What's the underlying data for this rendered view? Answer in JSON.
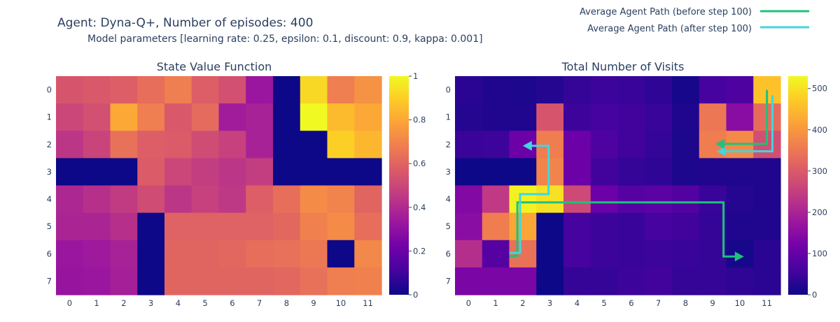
{
  "header": {
    "title": "Agent: Dyna-Q+, Number of episodes: 400",
    "subtitle": "Model parameters [learning rate: 0.25, epsilon: 0.1, discount: 0.9, kappa: 0.001]"
  },
  "legend": {
    "items": [
      {
        "label": "Average Agent Path (before step 100)",
        "color": "#1ec27a"
      },
      {
        "label": "Average Agent Path (after step 100)",
        "color": "#40d6e0"
      }
    ]
  },
  "colorscale": [
    "#0d0887",
    "#46039f",
    "#7201a8",
    "#9c179e",
    "#bd3786",
    "#d8576b",
    "#ed7953",
    "#fb9f3a",
    "#fdca26",
    "#f0f921"
  ],
  "chart_data": [
    {
      "type": "heatmap",
      "title": "State Value Function",
      "x_ticks": [
        "0",
        "1",
        "2",
        "3",
        "4",
        "5",
        "6",
        "7",
        "8",
        "9",
        "10",
        "11"
      ],
      "y_ticks": [
        "0",
        "1",
        "2",
        "3",
        "4",
        "5",
        "6",
        "7"
      ],
      "zmin": 0,
      "zmax": 1.0,
      "colorbar_ticks": [
        "0",
        "0.2",
        "0.4",
        "0.6",
        "0.8",
        "1"
      ],
      "colorbar_tick_values": [
        0,
        0.2,
        0.4,
        0.6,
        0.8,
        1.0
      ],
      "z": [
        [
          0.55,
          0.56,
          0.58,
          0.63,
          0.68,
          0.58,
          0.53,
          0.33,
          0.0,
          0.92,
          0.68,
          0.74
        ],
        [
          0.5,
          0.53,
          0.8,
          0.68,
          0.56,
          0.62,
          0.35,
          0.37,
          0.0,
          1.0,
          0.85,
          0.8
        ],
        [
          0.44,
          0.49,
          0.64,
          0.58,
          0.57,
          0.52,
          0.48,
          0.37,
          0.0,
          0.0,
          0.9,
          0.84
        ],
        [
          0.0,
          0.0,
          0.0,
          0.57,
          0.5,
          0.47,
          0.44,
          0.47,
          0.0,
          0.0,
          0.0,
          0.0
        ],
        [
          0.39,
          0.42,
          0.46,
          0.52,
          0.44,
          0.48,
          0.45,
          0.58,
          0.63,
          0.72,
          0.7,
          0.6
        ],
        [
          0.38,
          0.38,
          0.42,
          0.0,
          0.59,
          0.59,
          0.59,
          0.59,
          0.61,
          0.69,
          0.72,
          0.63
        ],
        [
          0.33,
          0.34,
          0.37,
          0.0,
          0.6,
          0.6,
          0.61,
          0.63,
          0.64,
          0.66,
          0.0,
          0.71
        ],
        [
          0.32,
          0.33,
          0.36,
          0.0,
          0.6,
          0.6,
          0.6,
          0.6,
          0.61,
          0.64,
          0.68,
          0.69
        ]
      ]
    },
    {
      "type": "heatmap",
      "title": "Total Number of Visits",
      "x_ticks": [
        "0",
        "1",
        "2",
        "3",
        "4",
        "5",
        "6",
        "7",
        "8",
        "9",
        "10",
        "11"
      ],
      "y_ticks": [
        "0",
        "1",
        "2",
        "3",
        "4",
        "5",
        "6",
        "7"
      ],
      "zmin": 0,
      "zmax": 530,
      "colorbar_ticks": [
        "0",
        "100",
        "200",
        "300",
        "400",
        "500"
      ],
      "colorbar_tick_values": [
        0,
        100,
        200,
        300,
        400,
        500
      ],
      "z": [
        [
          30,
          20,
          15,
          25,
          40,
          50,
          45,
          35,
          10,
          60,
          70,
          460
        ],
        [
          25,
          20,
          20,
          290,
          50,
          60,
          55,
          45,
          20,
          350,
          150,
          330
        ],
        [
          45,
          50,
          110,
          360,
          110,
          70,
          55,
          40,
          15,
          360,
          380,
          280
        ],
        [
          0,
          0,
          0,
          370,
          110,
          55,
          40,
          35,
          15,
          20,
          20,
          20
        ],
        [
          140,
          240,
          520,
          500,
          270,
          110,
          80,
          85,
          75,
          45,
          25,
          20
        ],
        [
          150,
          360,
          420,
          0,
          60,
          50,
          45,
          60,
          55,
          40,
          20,
          20
        ],
        [
          220,
          80,
          340,
          0,
          60,
          50,
          45,
          50,
          45,
          40,
          10,
          30
        ],
        [
          130,
          130,
          130,
          0,
          40,
          40,
          50,
          55,
          40,
          40,
          35,
          30
        ]
      ],
      "paths": [
        {
          "name": "Average Agent Path (before step 100)",
          "color": "#1ec27a",
          "points": [
            [
              1.5,
              6.08
            ],
            [
              1.8,
              6.08
            ],
            [
              1.8,
              4.12
            ],
            [
              9.4,
              4.12
            ],
            [
              9.4,
              6.1
            ],
            [
              10.05,
              6.1
            ]
          ]
        },
        {
          "name": "Average Agent Path (after step 100)",
          "color": "#40d6e0",
          "points": [
            [
              11.2,
              0.2
            ],
            [
              11.2,
              2.25
            ],
            [
              9.25,
              2.25
            ]
          ]
        },
        {
          "name": "Average Agent Path (before step 100)",
          "color": "#1ec27a",
          "points": [
            [
              11.0,
              0.0
            ],
            [
              11.0,
              1.98
            ],
            [
              9.2,
              1.98
            ]
          ]
        },
        {
          "name": "Average Agent Path (after step 100)",
          "color": "#40d6e0",
          "points": [
            [
              1.5,
              5.97
            ],
            [
              1.9,
              5.97
            ],
            [
              1.9,
              3.82
            ],
            [
              2.95,
              3.82
            ],
            [
              2.95,
              2.05
            ],
            [
              2.1,
              2.05
            ]
          ]
        }
      ]
    }
  ]
}
